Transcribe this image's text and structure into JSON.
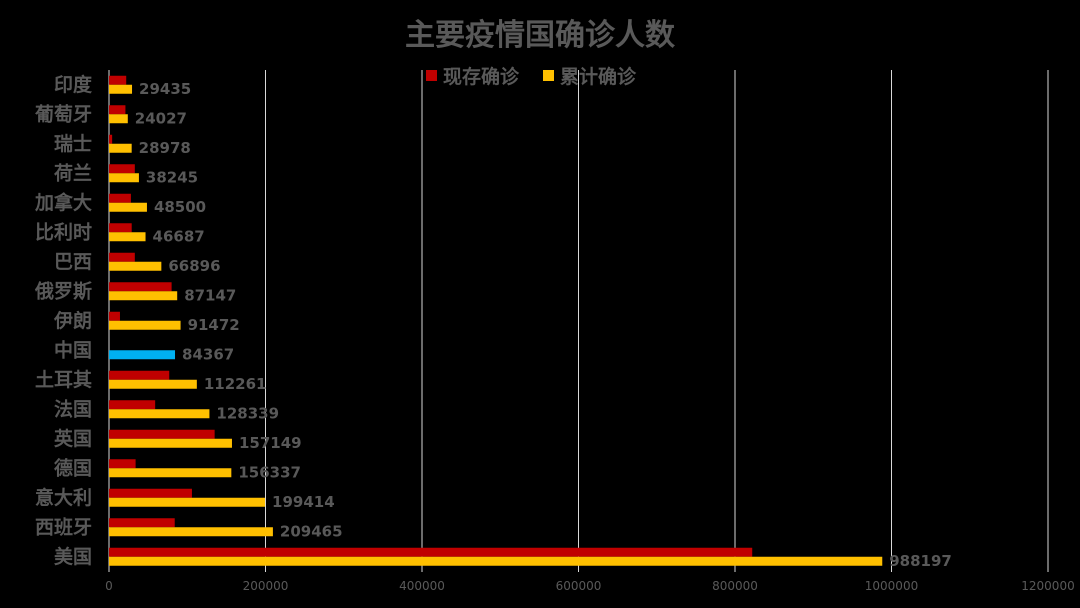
{
  "chart_data": {
    "type": "bar",
    "orientation": "horizontal",
    "title": "主要疫情国确诊人数",
    "categories": [
      "美国",
      "西班牙",
      "意大利",
      "德国",
      "英国",
      "法国",
      "土耳其",
      "中国",
      "伊朗",
      "俄罗斯",
      "巴西",
      "比利时",
      "加拿大",
      "荷兰",
      "瑞士",
      "葡萄牙",
      "印度"
    ],
    "series": [
      {
        "name": "现存确诊",
        "color": "#C00000",
        "values": [
          822000,
          84000,
          106000,
          34000,
          135000,
          59000,
          77000,
          0,
          14000,
          80000,
          33000,
          29000,
          28000,
          33000,
          4000,
          21000,
          22000
        ]
      },
      {
        "name": "累计确诊",
        "color": "#FFC000",
        "values": [
          988197,
          209465,
          199414,
          156337,
          157149,
          128339,
          112261,
          84367,
          91472,
          87147,
          66896,
          46687,
          48500,
          38245,
          28978,
          24027,
          29435
        ]
      }
    ],
    "highlight": {
      "category": "中国",
      "color": "#00B0F0"
    },
    "xlim": [
      0,
      1200000
    ],
    "xticks": [
      0,
      200000,
      400000,
      600000,
      800000,
      1000000,
      1200000
    ],
    "grid": true,
    "legend_position": "top",
    "background": "#000000",
    "label_color": "#595959"
  }
}
